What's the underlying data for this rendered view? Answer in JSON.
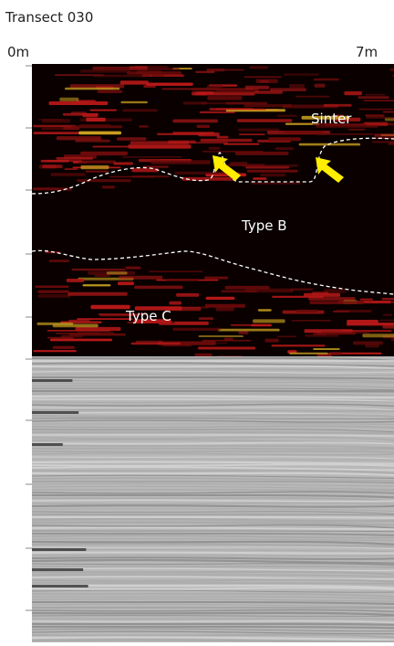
{
  "title": "Transect 030",
  "scale": {
    "start": "0m",
    "end": "7m"
  },
  "labels": {
    "sinter": "Sinter",
    "type_b": "Type B",
    "type_c": "Type C"
  }
}
